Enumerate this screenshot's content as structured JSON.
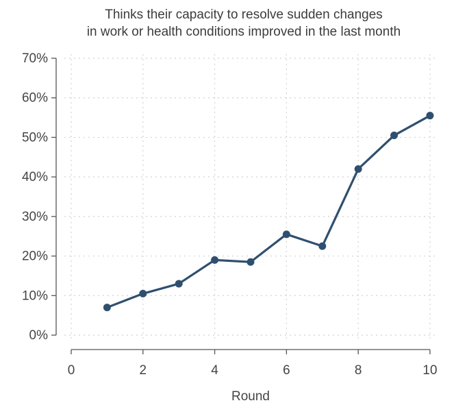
{
  "chart_data": {
    "type": "line",
    "title_lines": [
      "Thinks their capacity to resolve sudden changes",
      "in work or health conditions improved in the last month"
    ],
    "xlabel": "Round",
    "ylabel": "",
    "xlim": [
      0,
      10
    ],
    "ylim": [
      0,
      70
    ],
    "x_ticks": [
      0,
      2,
      4,
      6,
      8,
      10
    ],
    "x_tick_labels": [
      "0",
      "2",
      "4",
      "6",
      "8",
      "10"
    ],
    "y_ticks": [
      0,
      10,
      20,
      30,
      40,
      50,
      60,
      70
    ],
    "y_tick_labels": [
      "0%",
      "10%",
      "20%",
      "30%",
      "40%",
      "50%",
      "60%",
      "70%"
    ],
    "grid": true,
    "series": [
      {
        "color": "#2f4f6f",
        "x": [
          1,
          2,
          3,
          4,
          5,
          6,
          7,
          8,
          9,
          10
        ],
        "y": [
          7,
          10.5,
          13,
          19,
          18.5,
          25.5,
          22.5,
          42,
          50.5,
          55.5
        ]
      }
    ]
  }
}
